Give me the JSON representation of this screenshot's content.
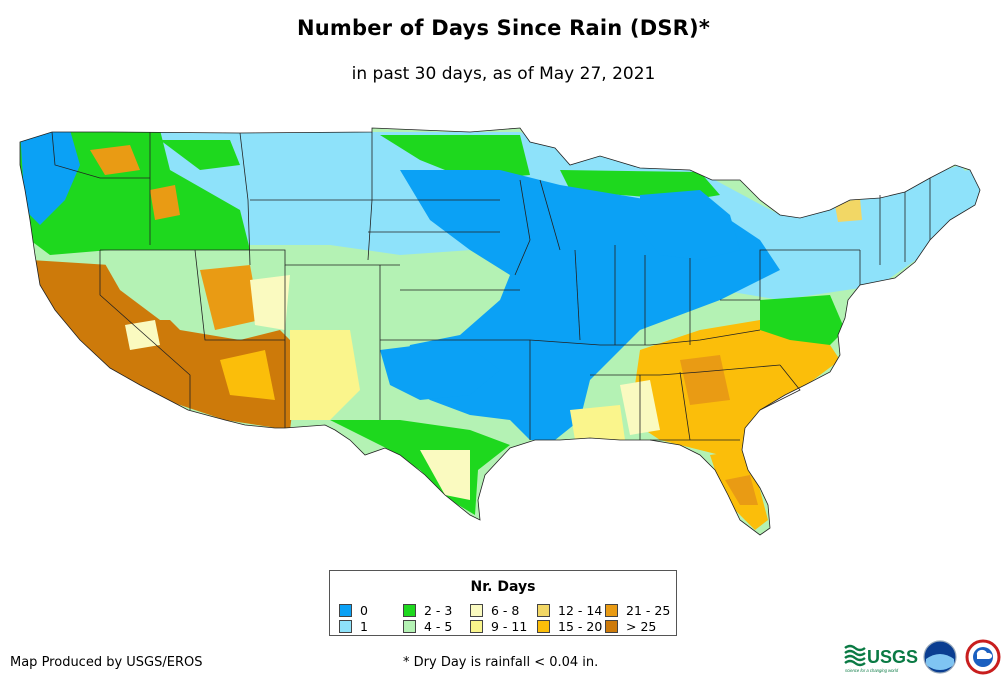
{
  "title": "Number of Days Since Rain (DSR)*",
  "subtitle": "in past 30 days, as of May 27, 2021",
  "legend": {
    "title": "Nr. Days",
    "items": [
      {
        "label": "0",
        "color": "#0ba1f5"
      },
      {
        "label": "1",
        "color": "#8ee2fa"
      },
      {
        "label": "2 - 3",
        "color": "#1ed81e"
      },
      {
        "label": "4 - 5",
        "color": "#b4f2b4"
      },
      {
        "label": "6 - 8",
        "color": "#fafac0"
      },
      {
        "label": "9 - 11",
        "color": "#faf58c"
      },
      {
        "label": "12 - 14",
        "color": "#f2d765"
      },
      {
        "label": "15 - 20",
        "color": "#fbbe0a"
      },
      {
        "label": "21 - 25",
        "color": "#e99b14"
      },
      {
        "label": "> 25",
        "color": "#cd7a0a"
      }
    ]
  },
  "credit": "Map Produced by USGS/EROS",
  "footnote": "* Dry Day is rainfall < 0.04 in.",
  "logos": {
    "usgs": "USGS",
    "usgs_tagline": "science for a changing world"
  },
  "map": {
    "subject": "contiguous-united-states",
    "state_borders": true,
    "background": "#ffffff"
  }
}
